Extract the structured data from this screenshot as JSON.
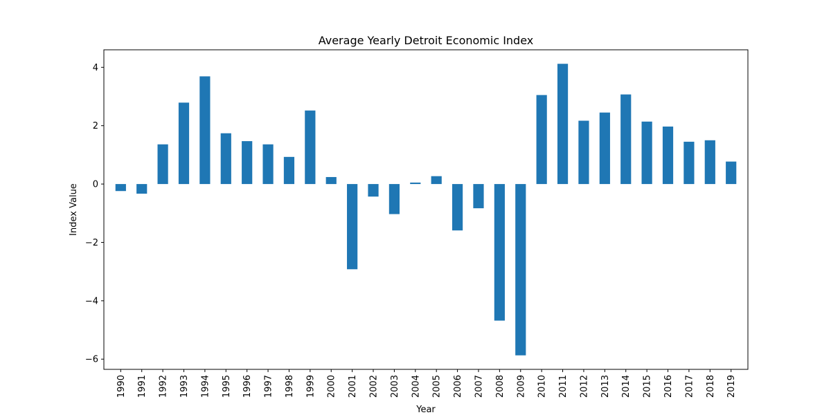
{
  "chart_data": {
    "type": "bar",
    "title": "Average Yearly Detroit Economic Index",
    "xlabel": "Year",
    "ylabel": "Index Value",
    "categories": [
      "1990",
      "1991",
      "1992",
      "1993",
      "1994",
      "1995",
      "1996",
      "1997",
      "1998",
      "1999",
      "2000",
      "2001",
      "2002",
      "2003",
      "2004",
      "2005",
      "2006",
      "2007",
      "2008",
      "2009",
      "2010",
      "2011",
      "2012",
      "2013",
      "2014",
      "2015",
      "2016",
      "2017",
      "2018",
      "2019"
    ],
    "values": [
      -0.24,
      -0.33,
      1.36,
      2.79,
      3.69,
      1.74,
      1.47,
      1.36,
      0.93,
      2.52,
      0.24,
      -2.92,
      -0.43,
      -1.03,
      0.05,
      0.27,
      -1.59,
      -0.83,
      -4.68,
      -5.87,
      3.05,
      4.12,
      2.17,
      2.45,
      3.07,
      2.14,
      1.97,
      1.45,
      1.5,
      0.77
    ],
    "ylim": [
      -6.35,
      4.6
    ],
    "yticks": [
      -6,
      -4,
      -2,
      0,
      2,
      4
    ],
    "ytick_labels": [
      "−6",
      "−4",
      "−2",
      "0",
      "2",
      "4"
    ],
    "grid": false,
    "bar_color": "#1f77b4"
  }
}
